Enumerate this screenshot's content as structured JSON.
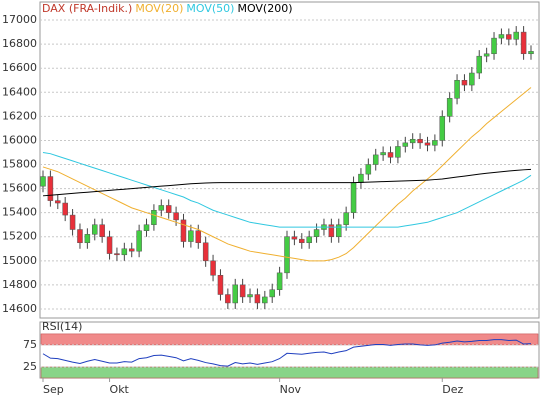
{
  "chart_data": [
    {
      "type": "candlestick",
      "categories": [
        "Sep",
        null,
        null,
        null,
        null,
        null,
        null,
        null,
        null,
        "Okt",
        null,
        null,
        null,
        null,
        null,
        null,
        null,
        null,
        null,
        null,
        null,
        null,
        null,
        null,
        null,
        null,
        null,
        null,
        null,
        null,
        null,
        null,
        "Nov",
        null,
        null,
        null,
        null,
        null,
        null,
        null,
        null,
        null,
        null,
        null,
        null,
        null,
        null,
        null,
        null,
        null,
        null,
        null,
        null,
        null,
        "Dez",
        null,
        null,
        null,
        null,
        null,
        null,
        null,
        null,
        null,
        null,
        null,
        null
      ],
      "ohlc": {
        "name": "DAX (FRA-Indik.)",
        "color": "#c0392b",
        "up_color": "#44cc44",
        "down_color": "#e8303a",
        "open": [
          15620,
          15700,
          15500,
          15480,
          15380,
          15260,
          15150,
          15220,
          15300,
          15200,
          15060,
          15050,
          15100,
          15080,
          15250,
          15300,
          15420,
          15460,
          15400,
          15340,
          15160,
          15250,
          15150,
          15000,
          14880,
          14720,
          14650,
          14800,
          14700,
          14720,
          14650,
          14700,
          14760,
          14900,
          15200,
          15180,
          15150,
          15200,
          15260,
          15300,
          15200,
          15300,
          15400,
          15650,
          15720,
          15800,
          15880,
          15900,
          15860,
          15950,
          15980,
          16010,
          15980,
          15960,
          16000,
          16200,
          16350,
          16500,
          16460,
          16560,
          16700,
          16720,
          16850,
          16880,
          16840,
          16900,
          16720
        ],
        "high": [
          15750,
          15750,
          15550,
          15530,
          15430,
          15310,
          15270,
          15350,
          15350,
          15250,
          15110,
          15150,
          15150,
          15300,
          15350,
          15470,
          15510,
          15510,
          15450,
          15390,
          15300,
          15300,
          15200,
          15050,
          14930,
          14770,
          14850,
          14850,
          14770,
          14770,
          14750,
          14810,
          14950,
          15250,
          15250,
          15230,
          15250,
          15310,
          15350,
          15350,
          15350,
          15450,
          15700,
          15770,
          15850,
          15930,
          15950,
          15950,
          16000,
          16030,
          16060,
          16060,
          16030,
          16050,
          16250,
          16400,
          16550,
          16550,
          16610,
          16750,
          16770,
          16900,
          16930,
          16930,
          16950,
          16950,
          16790
        ],
        "low": [
          15570,
          15450,
          15430,
          15330,
          15210,
          15100,
          15100,
          15170,
          15150,
          15010,
          15000,
          15000,
          15030,
          15030,
          15200,
          15250,
          15370,
          15350,
          15290,
          15110,
          15110,
          15100,
          14950,
          14830,
          14670,
          14600,
          14600,
          14650,
          14650,
          14600,
          14600,
          14650,
          14710,
          14850,
          15130,
          15100,
          15100,
          15150,
          15210,
          15150,
          15150,
          15250,
          15350,
          15600,
          15670,
          15750,
          15830,
          15810,
          15810,
          15900,
          15930,
          15930,
          15910,
          15910,
          15950,
          16150,
          16300,
          16410,
          16410,
          16510,
          16650,
          16670,
          16800,
          16790,
          16790,
          16670,
          16670
        ],
        "close": [
          15700,
          15500,
          15480,
          15380,
          15260,
          15150,
          15220,
          15300,
          15200,
          15060,
          15050,
          15100,
          15080,
          15250,
          15300,
          15420,
          15460,
          15400,
          15340,
          15160,
          15250,
          15150,
          15000,
          14880,
          14720,
          14650,
          14800,
          14700,
          14720,
          14650,
          14700,
          14760,
          14900,
          15200,
          15180,
          15150,
          15200,
          15260,
          15300,
          15200,
          15300,
          15400,
          15650,
          15720,
          15800,
          15880,
          15900,
          15860,
          15950,
          15980,
          16010,
          15980,
          15960,
          16000,
          16200,
          16350,
          16500,
          16460,
          16560,
          16700,
          16720,
          16850,
          16880,
          16840,
          16900,
          16720,
          16740
        ]
      },
      "series": [
        {
          "name": "MOV(20)",
          "color": "#f0b030",
          "values": [
            15780,
            15760,
            15740,
            15710,
            15680,
            15650,
            15620,
            15590,
            15560,
            15530,
            15500,
            15470,
            15440,
            15420,
            15400,
            15380,
            15360,
            15340,
            15320,
            15300,
            15280,
            15260,
            15230,
            15200,
            15170,
            15140,
            15120,
            15100,
            15080,
            15070,
            15060,
            15050,
            15040,
            15030,
            15020,
            15010,
            15000,
            15000,
            15000,
            15010,
            15030,
            15060,
            15110,
            15170,
            15230,
            15290,
            15350,
            15410,
            15470,
            15520,
            15580,
            15630,
            15680,
            15730,
            15790,
            15850,
            15910,
            15970,
            16030,
            16080,
            16140,
            16190,
            16240,
            16290,
            16340,
            16390,
            16440
          ]
        },
        {
          "name": "MOV(50)",
          "color": "#30c8e0",
          "values": [
            15900,
            15890,
            15870,
            15850,
            15830,
            15810,
            15790,
            15770,
            15750,
            15730,
            15710,
            15690,
            15670,
            15650,
            15630,
            15610,
            15590,
            15570,
            15550,
            15530,
            15500,
            15480,
            15450,
            15420,
            15400,
            15380,
            15360,
            15340,
            15320,
            15310,
            15300,
            15290,
            15280,
            15280,
            15280,
            15280,
            15280,
            15280,
            15280,
            15280,
            15280,
            15280,
            15280,
            15280,
            15280,
            15280,
            15280,
            15280,
            15280,
            15290,
            15300,
            15310,
            15320,
            15340,
            15360,
            15380,
            15400,
            15430,
            15460,
            15490,
            15520,
            15550,
            15580,
            15610,
            15640,
            15670,
            15710
          ]
        },
        {
          "name": "MOV(200)",
          "color": "#000000",
          "values": [
            15540,
            15545,
            15550,
            15555,
            15560,
            15565,
            15570,
            15575,
            15580,
            15585,
            15590,
            15595,
            15600,
            15605,
            15610,
            15615,
            15620,
            15625,
            15630,
            15635,
            15640,
            15643,
            15646,
            15648,
            15650,
            15650,
            15650,
            15650,
            15650,
            15650,
            15650,
            15650,
            15650,
            15650,
            15650,
            15650,
            15650,
            15650,
            15650,
            15650,
            15650,
            15650,
            15650,
            15652,
            15654,
            15656,
            15658,
            15660,
            15662,
            15664,
            15666,
            15668,
            15670,
            15675,
            15680,
            15688,
            15696,
            15704,
            15712,
            15720,
            15727,
            15734,
            15740,
            15746,
            15751,
            15756,
            15760
          ]
        }
      ],
      "ylim": [
        14525,
        17150
      ],
      "yticks": [
        14600,
        14800,
        15000,
        15200,
        15400,
        15600,
        15800,
        16000,
        16200,
        16400,
        16600,
        16800,
        17000
      ],
      "grid": true
    },
    {
      "type": "line",
      "series": [
        {
          "name": "RSI(14)",
          "color": "#1f3fbf",
          "values": [
            55,
            45,
            44,
            40,
            36,
            33,
            38,
            42,
            38,
            34,
            34,
            37,
            36,
            44,
            46,
            51,
            52,
            49,
            46,
            39,
            44,
            40,
            35,
            32,
            28,
            27,
            35,
            32,
            34,
            31,
            34,
            37,
            44,
            56,
            55,
            54,
            56,
            58,
            59,
            55,
            59,
            62,
            70,
            72,
            74,
            76,
            76,
            74,
            76,
            77,
            77,
            75,
            74,
            75,
            79,
            81,
            84,
            82,
            83,
            85,
            85,
            87,
            87,
            85,
            86,
            77,
            78
          ]
        }
      ],
      "bands": [
        {
          "range": [
            75,
            100
          ],
          "color": "#f08a8a"
        },
        {
          "range": [
            0,
            25
          ],
          "color": "#88d488"
        }
      ],
      "ylim": [
        0,
        127
      ],
      "yticks": [
        25,
        75
      ],
      "grid": true
    }
  ]
}
